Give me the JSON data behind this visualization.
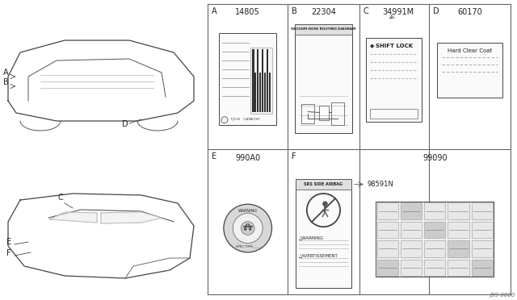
{
  "bg_color": "#f5f5f0",
  "white": "#ffffff",
  "black": "#000000",
  "gray_light": "#dddddd",
  "gray_mid": "#aaaaaa",
  "title_diagram": "J99 0000",
  "sections": {
    "A_label": "A",
    "A_part": "14805",
    "B_label": "B",
    "B_part": "22304",
    "B_sub": "VACUUM HOSE ROUTING DIAGRAM",
    "C_label": "C",
    "C_part": "34991M",
    "C_sub": "SHIFT LOCK",
    "D_label": "D",
    "D_part": "60170",
    "D_sub": "Hard Clear Coat",
    "E_label": "E",
    "E_part": "990A0",
    "F_label": "F",
    "F_part1": "98591N",
    "F_sub1": "SRS SIDE AIRBAG",
    "F_warn1": "△WARNING",
    "F_warn2": "△AVERTISSEMENT",
    "F_part2": "99090"
  }
}
